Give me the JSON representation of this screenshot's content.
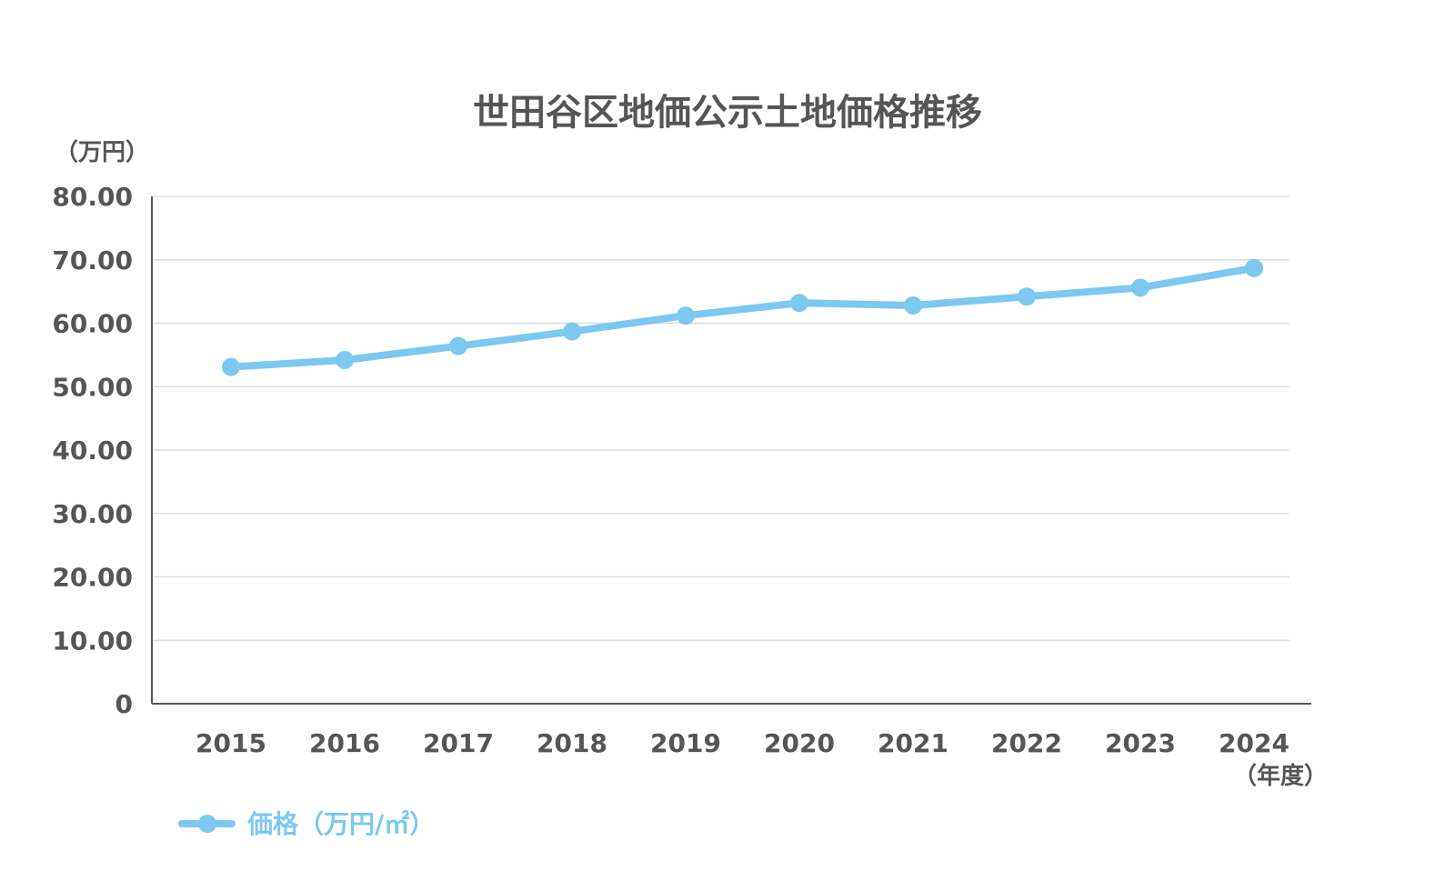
{
  "chart_data": {
    "type": "line",
    "title": "世田谷区地価公示土地価格推移",
    "ylabel": "（万円）",
    "xlabel": "（年度）",
    "ylim": [
      0,
      80
    ],
    "y_ticks": [
      "0",
      "10.00",
      "20.00",
      "30.00",
      "40.00",
      "50.00",
      "60.00",
      "70.00",
      "80.00"
    ],
    "y_tick_values": [
      0,
      10,
      20,
      30,
      40,
      50,
      60,
      70,
      80
    ],
    "categories": [
      "2015",
      "2016",
      "2017",
      "2018",
      "2019",
      "2020",
      "2021",
      "2022",
      "2023",
      "2024"
    ],
    "grid": true,
    "legend_position": "bottom-left",
    "series": [
      {
        "name": "価格（万円/㎡）",
        "color": "#7cc8f0",
        "values": [
          53.1,
          54.2,
          56.4,
          58.7,
          61.2,
          63.2,
          62.8,
          64.2,
          65.6,
          68.7
        ]
      }
    ]
  }
}
